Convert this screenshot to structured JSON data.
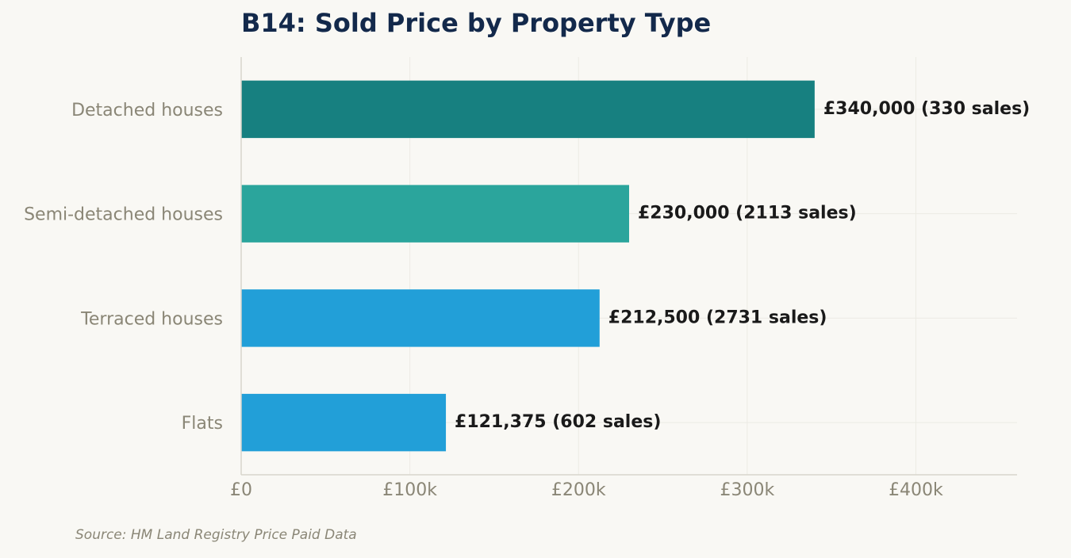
{
  "title": "B14: Sold Price by Property Type",
  "source": "Source: HM Land Registry Price Paid Data",
  "chart_data": {
    "type": "bar",
    "orientation": "horizontal",
    "title": "B14: Sold Price by Property Type",
    "xlabel": "",
    "ylabel": "",
    "xlim": [
      0,
      460000
    ],
    "grid": true,
    "categories": [
      "Detached houses",
      "Semi-detached houses",
      "Terraced houses",
      "Flats"
    ],
    "values": [
      340000,
      230000,
      212500,
      121375
    ],
    "sales": [
      330,
      2113,
      2731,
      602
    ],
    "data_labels": [
      "£340,000  (330 sales)",
      "£230,000  (2113 sales)",
      "£212,500  (2731 sales)",
      "£121,375  (602 sales)"
    ],
    "colors": [
      "#178080",
      "#2ba59c",
      "#229fd8",
      "#229fd8"
    ],
    "x_ticks": [
      0,
      100000,
      200000,
      300000,
      400000
    ],
    "x_tick_labels": [
      "£0",
      "£100k",
      "£200k",
      "£300k",
      "£400k"
    ]
  }
}
